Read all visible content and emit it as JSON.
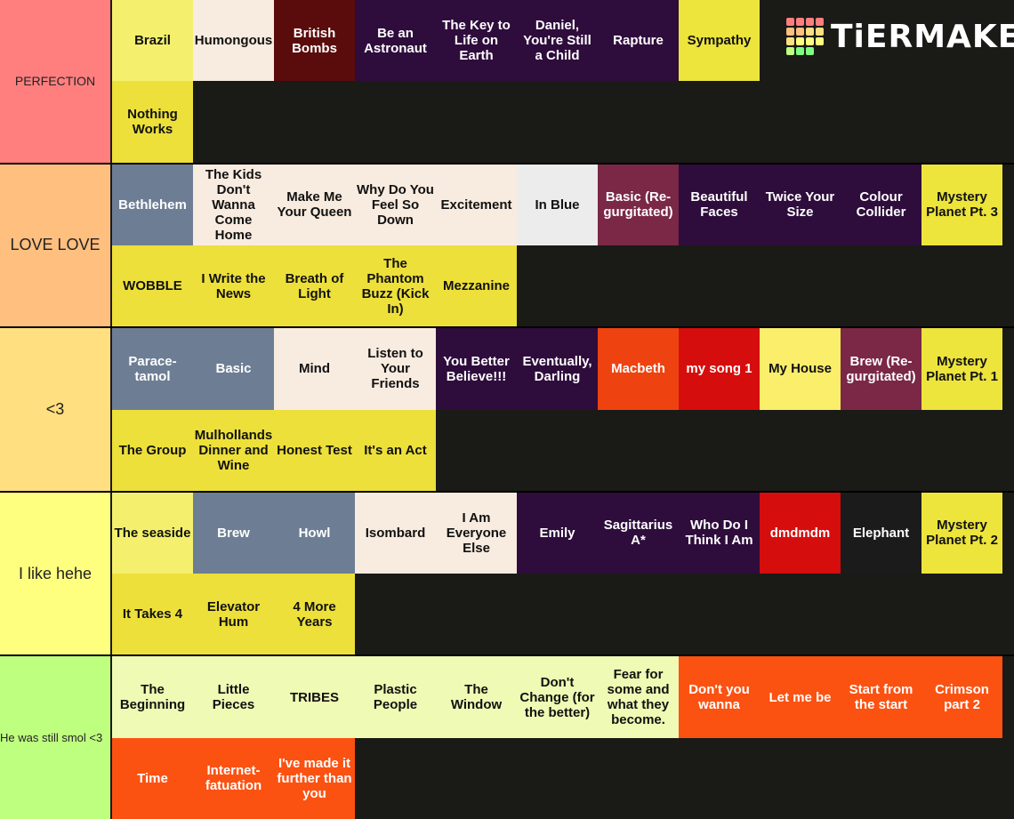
{
  "logo": "TiERMAKER",
  "tiers": [
    {
      "label": "PERFECTION",
      "color": "#ff7f7f",
      "rows": [
        [
          {
            "label": "Brazil",
            "color": "#f4f06e"
          },
          {
            "label": "Humongous",
            "color": "#f8ebdf"
          },
          {
            "label": "British Bombs",
            "color": "#5a0b0b"
          },
          {
            "label": "Be an Astronaut",
            "color": "#2e0c3c"
          },
          {
            "label": "The Key to Life on Earth",
            "color": "#2e0c3c"
          },
          {
            "label": "Daniel, You're Still a Child",
            "color": "#2e0c3c"
          },
          {
            "label": "Rapture",
            "color": "#2e0c3c"
          },
          {
            "label": "Sympathy",
            "color": "#ede43c"
          }
        ],
        [
          {
            "label": "Nothing Works",
            "color": "#ede03a"
          }
        ]
      ]
    },
    {
      "label": "LOVE LOVE",
      "color": "#ffbf7f",
      "rows": [
        [
          {
            "label": "Bethlehem",
            "color": "#6d7e94"
          },
          {
            "label": "The Kids Don't Wanna Come Home",
            "color": "#f8ebdf"
          },
          {
            "label": "Make Me Your Queen",
            "color": "#f8ebdf"
          },
          {
            "label": "Why Do You Feel So Down",
            "color": "#f8ebdf"
          },
          {
            "label": "Excitement",
            "color": "#f8ebdf"
          },
          {
            "label": "In Blue",
            "color": "#ececec"
          },
          {
            "label": "Basic (Re-gurgitated)",
            "color": "#7a2846"
          },
          {
            "label": "Beautiful Faces",
            "color": "#2e0c3c"
          },
          {
            "label": "Twice Your Size",
            "color": "#2e0c3c"
          },
          {
            "label": "Colour Collider",
            "color": "#2e0c3c"
          },
          {
            "label": "Mystery Planet Pt. 3",
            "color": "#ede43c"
          }
        ],
        [
          {
            "label": "WOBBLE",
            "color": "#ede03a"
          },
          {
            "label": "I Write the News",
            "color": "#ede03a"
          },
          {
            "label": "Breath of Light",
            "color": "#ede03a"
          },
          {
            "label": "The Phantom Buzz (Kick In)",
            "color": "#ede03a"
          },
          {
            "label": "Mezzanine",
            "color": "#ede03a"
          }
        ]
      ]
    },
    {
      "label": "<3",
      "color": "#ffdf7f",
      "rows": [
        [
          {
            "label": "Parace-tamol",
            "color": "#6d7e94"
          },
          {
            "label": "Basic",
            "color": "#6d7e94"
          },
          {
            "label": "Mind",
            "color": "#f8ebdf"
          },
          {
            "label": "Listen to Your Friends",
            "color": "#f8ebdf"
          },
          {
            "label": "You Better Believe!!!",
            "color": "#2e0c3c"
          },
          {
            "label": "Eventually, Darling",
            "color": "#2e0c3c"
          },
          {
            "label": "Macbeth",
            "color": "#ee4310"
          },
          {
            "label": "my song 1",
            "color": "#d60d0d"
          },
          {
            "label": "My House",
            "color": "#fbee6a"
          },
          {
            "label": "Brew (Re-gurgitated)",
            "color": "#7a2846"
          },
          {
            "label": "Mystery Planet Pt. 1",
            "color": "#ede43c"
          }
        ],
        [
          {
            "label": "The Group",
            "color": "#ede03a"
          },
          {
            "label": "Mulhollands Dinner and Wine",
            "color": "#ede03a"
          },
          {
            "label": "Honest Test",
            "color": "#ede03a"
          },
          {
            "label": "It's an Act",
            "color": "#ede03a"
          }
        ]
      ]
    },
    {
      "label": "I like hehe",
      "color": "#ffff7f",
      "rows": [
        [
          {
            "label": "The seaside",
            "color": "#f4f06e"
          },
          {
            "label": "Brew",
            "color": "#6d7e94"
          },
          {
            "label": "Howl",
            "color": "#6d7e94"
          },
          {
            "label": "Isombard",
            "color": "#f8ebdf"
          },
          {
            "label": "I Am Everyone Else",
            "color": "#f8ebdf"
          },
          {
            "label": "Emily",
            "color": "#2e0c3c"
          },
          {
            "label": "Sagittarius A*",
            "color": "#2e0c3c"
          },
          {
            "label": "Who Do I Think I Am",
            "color": "#2e0c3c"
          },
          {
            "label": "dmdmdm",
            "color": "#d60d0d"
          },
          {
            "label": "Elephant",
            "color": "#1b1b1b"
          },
          {
            "label": "Mystery Planet Pt. 2",
            "color": "#ede43c"
          }
        ],
        [
          {
            "label": "It Takes 4",
            "color": "#ede03a"
          },
          {
            "label": "Elevator Hum",
            "color": "#ede03a"
          },
          {
            "label": "4 More Years",
            "color": "#ede03a"
          }
        ]
      ]
    },
    {
      "label": "He was still smol <3",
      "color": "#bfff7f",
      "rows": [
        [
          {
            "label": "The Beginning",
            "color": "#effab4"
          },
          {
            "label": "Little Pieces",
            "color": "#effab4"
          },
          {
            "label": "TRIBES",
            "color": "#effab4"
          },
          {
            "label": "Plastic People",
            "color": "#effab4"
          },
          {
            "label": "The Window",
            "color": "#effab4"
          },
          {
            "label": "Don't Change (for the better)",
            "color": "#effab4"
          },
          {
            "label": "Fear for some and what they become.",
            "color": "#effab4"
          },
          {
            "label": "Don't you wanna",
            "color": "#fb5212"
          },
          {
            "label": "Let me be",
            "color": "#fb5212"
          },
          {
            "label": "Start from the start",
            "color": "#fb5212"
          },
          {
            "label": "Crimson part 2",
            "color": "#fb5212"
          }
        ],
        [
          {
            "label": "Time",
            "color": "#fb5212"
          },
          {
            "label": "Internet-fatuation",
            "color": "#fb5212"
          },
          {
            "label": "I've made it further than you",
            "color": "#fb5212"
          }
        ]
      ]
    }
  ]
}
